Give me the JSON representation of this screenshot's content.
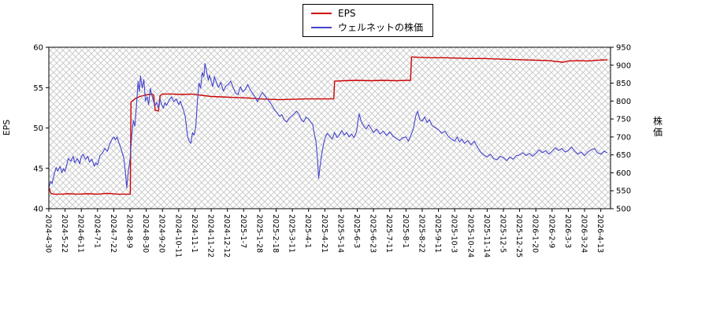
{
  "legend": {
    "items": [
      {
        "label": "EPS",
        "color": "#cc0000"
      },
      {
        "label": "ウェルネットの株価",
        "color": "#4444cc"
      }
    ]
  },
  "chart_data": {
    "type": "line",
    "title": "",
    "hatch_color": "#cccccc",
    "x_range": [
      0,
      34.6
    ],
    "x_tick_labels": [
      "2024-4-30",
      "2024-5-22",
      "2024-6-11",
      "2024-7-1",
      "2024-7-22",
      "2024-8-9",
      "2024-8-30",
      "2024-9-20",
      "2024-10-11",
      "2024-11-1",
      "2024-11-22",
      "2024-12-12",
      "2025-1-7",
      "2025-1-28",
      "2025-2-18",
      "2025-3-11",
      "2025-4-1",
      "2025-4-21",
      "2025-5-14",
      "2025-6-3",
      "2025-6-23",
      "2025-7-11",
      "2025-8-1",
      "2025-8-22",
      "2025-9-11",
      "2025-10-3",
      "2025-10-24",
      "2025-11-14",
      "2025-12-5",
      "2025-12-25",
      "2026-1-20",
      "2026-2-9",
      "2026-3-3",
      "2026-3-24",
      "2026-4-13"
    ],
    "left_axis": {
      "label": "EPS",
      "min": 40,
      "max": 60,
      "ticks": [
        40,
        45,
        50,
        55,
        60
      ]
    },
    "right_axis": {
      "label": "株価",
      "min": 500,
      "max": 950,
      "ticks": [
        500,
        550,
        600,
        650,
        700,
        750,
        800,
        850,
        900,
        950
      ]
    },
    "series": [
      {
        "name": "EPS",
        "data_name": "eps-line",
        "color": "#cc0000",
        "axis": "left",
        "points": [
          [
            0,
            42.6
          ],
          [
            0.12,
            41.9
          ],
          [
            0.3,
            41.8
          ],
          [
            0.8,
            41.8
          ],
          [
            1.2,
            41.85
          ],
          [
            1.8,
            41.8
          ],
          [
            2.4,
            41.85
          ],
          [
            3,
            41.8
          ],
          [
            3.6,
            41.9
          ],
          [
            4.2,
            41.8
          ],
          [
            4.8,
            41.8
          ],
          [
            5.02,
            41.8
          ],
          [
            5.06,
            53.2
          ],
          [
            5.3,
            53.6
          ],
          [
            5.6,
            53.9
          ],
          [
            6,
            54.1
          ],
          [
            6.3,
            54.2
          ],
          [
            6.45,
            54.1
          ],
          [
            6.55,
            52.2
          ],
          [
            6.75,
            52.1
          ],
          [
            6.85,
            54
          ],
          [
            7,
            54.2
          ],
          [
            7.6,
            54.2
          ],
          [
            8.2,
            54.15
          ],
          [
            8.8,
            54.2
          ],
          [
            9.4,
            54.05
          ],
          [
            10,
            53.9
          ],
          [
            10.6,
            53.85
          ],
          [
            11.2,
            53.8
          ],
          [
            11.8,
            53.75
          ],
          [
            12.4,
            53.7
          ],
          [
            13,
            53.6
          ],
          [
            13.6,
            53.55
          ],
          [
            14.2,
            53.5
          ],
          [
            15,
            53.55
          ],
          [
            15.8,
            53.6
          ],
          [
            16.6,
            53.6
          ],
          [
            17.4,
            53.6
          ],
          [
            17.55,
            53.6
          ],
          [
            17.6,
            55.8
          ],
          [
            18.2,
            55.85
          ],
          [
            19,
            55.9
          ],
          [
            19.8,
            55.85
          ],
          [
            20.6,
            55.9
          ],
          [
            21.4,
            55.85
          ],
          [
            22.1,
            55.9
          ],
          [
            22.28,
            55.9
          ],
          [
            22.34,
            58.8
          ],
          [
            22.8,
            58.75
          ],
          [
            23.6,
            58.7
          ],
          [
            24.4,
            58.7
          ],
          [
            25.2,
            58.65
          ],
          [
            26,
            58.6
          ],
          [
            26.8,
            58.6
          ],
          [
            27.6,
            58.55
          ],
          [
            28.4,
            58.5
          ],
          [
            29.2,
            58.45
          ],
          [
            30,
            58.4
          ],
          [
            30.8,
            58.35
          ],
          [
            31.4,
            58.2
          ],
          [
            31.7,
            58.15
          ],
          [
            32,
            58.3
          ],
          [
            32.6,
            58.35
          ],
          [
            33.2,
            58.3
          ],
          [
            33.8,
            58.4
          ],
          [
            34.4,
            58.45
          ]
        ]
      },
      {
        "name": "ウェルネットの株価",
        "data_name": "price-line",
        "color": "#4444cc",
        "axis": "right",
        "points": [
          [
            0,
            558
          ],
          [
            0.1,
            576
          ],
          [
            0.2,
            570
          ],
          [
            0.35,
            600
          ],
          [
            0.45,
            615
          ],
          [
            0.55,
            605
          ],
          [
            0.7,
            618
          ],
          [
            0.8,
            600
          ],
          [
            0.9,
            612
          ],
          [
            1,
            604
          ],
          [
            1.1,
            622
          ],
          [
            1.2,
            640
          ],
          [
            1.35,
            632
          ],
          [
            1.5,
            646
          ],
          [
            1.6,
            628
          ],
          [
            1.75,
            640
          ],
          [
            1.9,
            625
          ],
          [
            2,
            645
          ],
          [
            2.1,
            652
          ],
          [
            2.25,
            638
          ],
          [
            2.4,
            646
          ],
          [
            2.5,
            630
          ],
          [
            2.65,
            638
          ],
          [
            2.8,
            618
          ],
          [
            2.9,
            628
          ],
          [
            3,
            622
          ],
          [
            3.15,
            648
          ],
          [
            3.3,
            655
          ],
          [
            3.45,
            668
          ],
          [
            3.6,
            660
          ],
          [
            3.75,
            680
          ],
          [
            3.9,
            695
          ],
          [
            4,
            700
          ],
          [
            4.1,
            692
          ],
          [
            4.2,
            700
          ],
          [
            4.35,
            680
          ],
          [
            4.5,
            660
          ],
          [
            4.62,
            640
          ],
          [
            4.72,
            600
          ],
          [
            4.8,
            558
          ],
          [
            4.9,
            606
          ],
          [
            5,
            635
          ],
          [
            5.1,
            700
          ],
          [
            5.2,
            746
          ],
          [
            5.3,
            730
          ],
          [
            5.4,
            790
          ],
          [
            5.5,
            855
          ],
          [
            5.57,
            826
          ],
          [
            5.65,
            870
          ],
          [
            5.75,
            836
          ],
          [
            5.85,
            860
          ],
          [
            5.95,
            800
          ],
          [
            6.05,
            812
          ],
          [
            6.15,
            790
          ],
          [
            6.25,
            835
          ],
          [
            6.35,
            815
          ],
          [
            6.45,
            800
          ],
          [
            6.55,
            788
          ],
          [
            6.65,
            796
          ],
          [
            6.75,
            780
          ],
          [
            6.85,
            806
          ],
          [
            6.95,
            790
          ],
          [
            7.05,
            780
          ],
          [
            7.15,
            795
          ],
          [
            7.25,
            788
          ],
          [
            7.4,
            802
          ],
          [
            7.55,
            812
          ],
          [
            7.7,
            798
          ],
          [
            7.85,
            806
          ],
          [
            8,
            790
          ],
          [
            8.1,
            800
          ],
          [
            8.25,
            780
          ],
          [
            8.4,
            758
          ],
          [
            8.55,
            700
          ],
          [
            8.65,
            688
          ],
          [
            8.75,
            682
          ],
          [
            8.85,
            712
          ],
          [
            8.95,
            705
          ],
          [
            9.05,
            728
          ],
          [
            9.15,
            800
          ],
          [
            9.25,
            850
          ],
          [
            9.35,
            836
          ],
          [
            9.45,
            880
          ],
          [
            9.55,
            868
          ],
          [
            9.62,
            905
          ],
          [
            9.72,
            882
          ],
          [
            9.82,
            858
          ],
          [
            9.9,
            872
          ],
          [
            10,
            855
          ],
          [
            10.1,
            840
          ],
          [
            10.2,
            868
          ],
          [
            10.32,
            852
          ],
          [
            10.45,
            838
          ],
          [
            10.6,
            852
          ],
          [
            10.75,
            828
          ],
          [
            10.9,
            842
          ],
          [
            11.05,
            846
          ],
          [
            11.2,
            856
          ],
          [
            11.35,
            838
          ],
          [
            11.5,
            822
          ],
          [
            11.65,
            818
          ],
          [
            11.8,
            840
          ],
          [
            11.95,
            826
          ],
          [
            12.1,
            832
          ],
          [
            12.25,
            846
          ],
          [
            12.4,
            832
          ],
          [
            12.55,
            822
          ],
          [
            12.7,
            812
          ],
          [
            12.85,
            798
          ],
          [
            13,
            812
          ],
          [
            13.15,
            824
          ],
          [
            13.3,
            815
          ],
          [
            13.45,
            806
          ],
          [
            13.6,
            798
          ],
          [
            13.75,
            788
          ],
          [
            13.9,
            776
          ],
          [
            14.05,
            768
          ],
          [
            14.2,
            758
          ],
          [
            14.35,
            762
          ],
          [
            14.5,
            748
          ],
          [
            14.65,
            742
          ],
          [
            14.8,
            752
          ],
          [
            14.95,
            758
          ],
          [
            15.1,
            764
          ],
          [
            15.25,
            772
          ],
          [
            15.4,
            764
          ],
          [
            15.55,
            748
          ],
          [
            15.7,
            742
          ],
          [
            15.85,
            755
          ],
          [
            16,
            750
          ],
          [
            16.12,
            742
          ],
          [
            16.25,
            735
          ],
          [
            16.35,
            710
          ],
          [
            16.45,
            688
          ],
          [
            16.55,
            640
          ],
          [
            16.62,
            585
          ],
          [
            16.72,
            622
          ],
          [
            16.82,
            655
          ],
          [
            16.92,
            680
          ],
          [
            17.02,
            698
          ],
          [
            17.15,
            710
          ],
          [
            17.3,
            702
          ],
          [
            17.45,
            694
          ],
          [
            17.6,
            712
          ],
          [
            17.75,
            698
          ],
          [
            17.9,
            706
          ],
          [
            18.05,
            718
          ],
          [
            18.2,
            705
          ],
          [
            18.35,
            712
          ],
          [
            18.5,
            700
          ],
          [
            18.65,
            708
          ],
          [
            18.8,
            698
          ],
          [
            18.95,
            714
          ],
          [
            19.05,
            748
          ],
          [
            19.12,
            764
          ],
          [
            19.25,
            742
          ],
          [
            19.4,
            730
          ],
          [
            19.55,
            722
          ],
          [
            19.7,
            734
          ],
          [
            19.85,
            724
          ],
          [
            20,
            712
          ],
          [
            20.2,
            722
          ],
          [
            20.4,
            708
          ],
          [
            20.6,
            716
          ],
          [
            20.8,
            704
          ],
          [
            21,
            714
          ],
          [
            21.2,
            702
          ],
          [
            21.4,
            696
          ],
          [
            21.6,
            690
          ],
          [
            21.8,
            698
          ],
          [
            22,
            700
          ],
          [
            22.15,
            688
          ],
          [
            22.3,
            704
          ],
          [
            22.45,
            722
          ],
          [
            22.6,
            758
          ],
          [
            22.72,
            772
          ],
          [
            22.85,
            748
          ],
          [
            23,
            744
          ],
          [
            23.15,
            756
          ],
          [
            23.3,
            740
          ],
          [
            23.45,
            748
          ],
          [
            23.6,
            732
          ],
          [
            23.8,
            726
          ],
          [
            24,
            720
          ],
          [
            24.2,
            710
          ],
          [
            24.4,
            716
          ],
          [
            24.6,
            702
          ],
          [
            24.8,
            694
          ],
          [
            25,
            688
          ],
          [
            25.15,
            700
          ],
          [
            25.3,
            686
          ],
          [
            25.45,
            694
          ],
          [
            25.6,
            682
          ],
          [
            25.8,
            690
          ],
          [
            26,
            678
          ],
          [
            26.2,
            688
          ],
          [
            26.4,
            672
          ],
          [
            26.6,
            658
          ],
          [
            26.8,
            650
          ],
          [
            27,
            644
          ],
          [
            27.2,
            652
          ],
          [
            27.4,
            640
          ],
          [
            27.6,
            636
          ],
          [
            27.8,
            646
          ],
          [
            28,
            642
          ],
          [
            28.2,
            634
          ],
          [
            28.4,
            644
          ],
          [
            28.6,
            638
          ],
          [
            28.8,
            648
          ],
          [
            29,
            650
          ],
          [
            29.2,
            656
          ],
          [
            29.4,
            648
          ],
          [
            29.6,
            654
          ],
          [
            29.8,
            646
          ],
          [
            30,
            654
          ],
          [
            30.2,
            664
          ],
          [
            30.4,
            656
          ],
          [
            30.6,
            662
          ],
          [
            30.8,
            652
          ],
          [
            31,
            660
          ],
          [
            31.2,
            670
          ],
          [
            31.4,
            662
          ],
          [
            31.6,
            668
          ],
          [
            31.8,
            658
          ],
          [
            32,
            662
          ],
          [
            32.2,
            672
          ],
          [
            32.4,
            660
          ],
          [
            32.6,
            652
          ],
          [
            32.8,
            658
          ],
          [
            33,
            648
          ],
          [
            33.2,
            658
          ],
          [
            33.4,
            664
          ],
          [
            33.6,
            668
          ],
          [
            33.8,
            656
          ],
          [
            34,
            652
          ],
          [
            34.2,
            660
          ],
          [
            34.4,
            656
          ]
        ]
      }
    ]
  }
}
